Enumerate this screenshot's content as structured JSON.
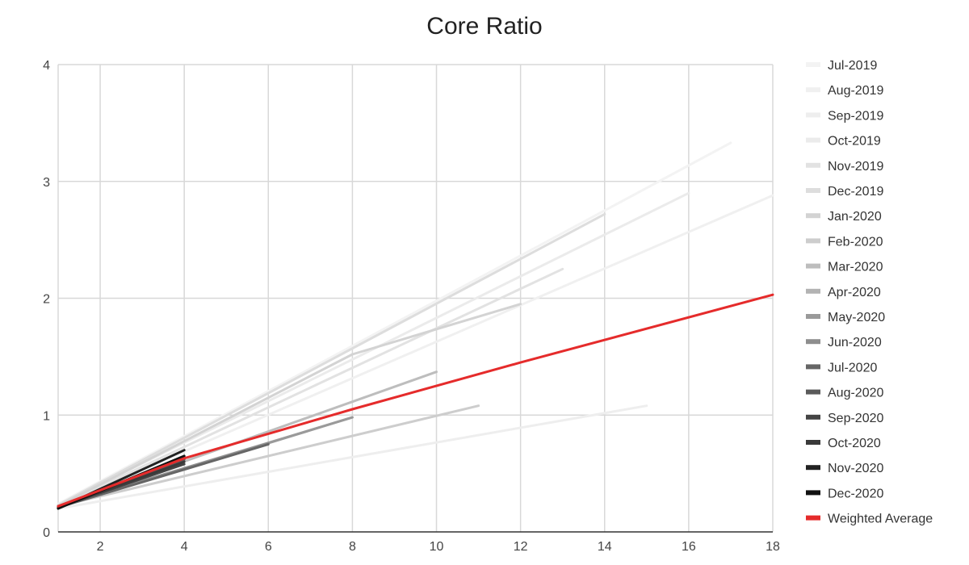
{
  "chart_data": {
    "type": "line",
    "title": "Core Ratio",
    "xlabel": "",
    "ylabel": "",
    "xlim": [
      1,
      18
    ],
    "ylim": [
      0,
      4
    ],
    "x_ticks": [
      "2",
      "4",
      "6",
      "8",
      "10",
      "12",
      "14",
      "16",
      "18"
    ],
    "y_ticks": [
      "0",
      "1",
      "2",
      "3",
      "4"
    ],
    "grid": true,
    "legend_position": "right",
    "series": [
      {
        "name": "Jul-2019",
        "color": "#f3f3f3",
        "x": [
          1,
          17
        ],
        "y": [
          0.24,
          3.33
        ]
      },
      {
        "name": "Aug-2019",
        "color": "#f0f0f0",
        "x": [
          1,
          18
        ],
        "y": [
          0.22,
          2.88
        ]
      },
      {
        "name": "Sep-2019",
        "color": "#eeeeee",
        "x": [
          1,
          15
        ],
        "y": [
          0.2,
          1.08
        ]
      },
      {
        "name": "Oct-2019",
        "color": "#ebebeb",
        "x": [
          1,
          16
        ],
        "y": [
          0.23,
          2.9
        ]
      },
      {
        "name": "Nov-2019",
        "color": "#e2e2e2",
        "x": [
          1,
          13
        ],
        "y": [
          0.22,
          2.25
        ]
      },
      {
        "name": "Dec-2019",
        "color": "#dddddd",
        "x": [
          1,
          14
        ],
        "y": [
          0.23,
          2.72
        ]
      },
      {
        "name": "Jan-2020",
        "color": "#d3d3d3",
        "x": [
          1,
          8,
          12
        ],
        "y": [
          0.22,
          1.52,
          1.95
        ]
      },
      {
        "name": "Feb-2020",
        "color": "#cdcdcd",
        "x": [
          1,
          11
        ],
        "y": [
          0.22,
          1.08
        ]
      },
      {
        "name": "Mar-2020",
        "color": "#bdbdbd",
        "x": [
          1,
          10
        ],
        "y": [
          0.22,
          1.37
        ]
      },
      {
        "name": "Apr-2020",
        "color": "#b3b3b3",
        "x": [
          1,
          8
        ],
        "y": [
          0.22,
          0.98
        ]
      },
      {
        "name": "May-2020",
        "color": "#9a9a9a",
        "x": [
          1,
          8
        ],
        "y": [
          0.21,
          0.98
        ]
      },
      {
        "name": "Jun-2020",
        "color": "#8e8e8e",
        "x": [
          1,
          6
        ],
        "y": [
          0.22,
          0.76
        ]
      },
      {
        "name": "Jul-2020",
        "color": "#666666",
        "x": [
          1,
          6
        ],
        "y": [
          0.21,
          0.75
        ]
      },
      {
        "name": "Aug-2020",
        "color": "#5a5a5a",
        "x": [
          1,
          4
        ],
        "y": [
          0.21,
          0.62
        ]
      },
      {
        "name": "Sep-2020",
        "color": "#444444",
        "x": [
          1,
          4
        ],
        "y": [
          0.21,
          0.58
        ]
      },
      {
        "name": "Oct-2020",
        "color": "#3a3a3a",
        "x": [
          1,
          4
        ],
        "y": [
          0.21,
          0.6
        ]
      },
      {
        "name": "Nov-2020",
        "color": "#222222",
        "x": [
          1,
          4
        ],
        "y": [
          0.2,
          0.7
        ]
      },
      {
        "name": "Dec-2020",
        "color": "#111111",
        "x": [
          1,
          4
        ],
        "y": [
          0.2,
          0.65
        ]
      },
      {
        "name": "Weighted Average",
        "color": "#e52b2b",
        "x": [
          1,
          4,
          8,
          12,
          18
        ],
        "y": [
          0.22,
          0.63,
          1.05,
          1.45,
          2.03
        ]
      }
    ]
  }
}
